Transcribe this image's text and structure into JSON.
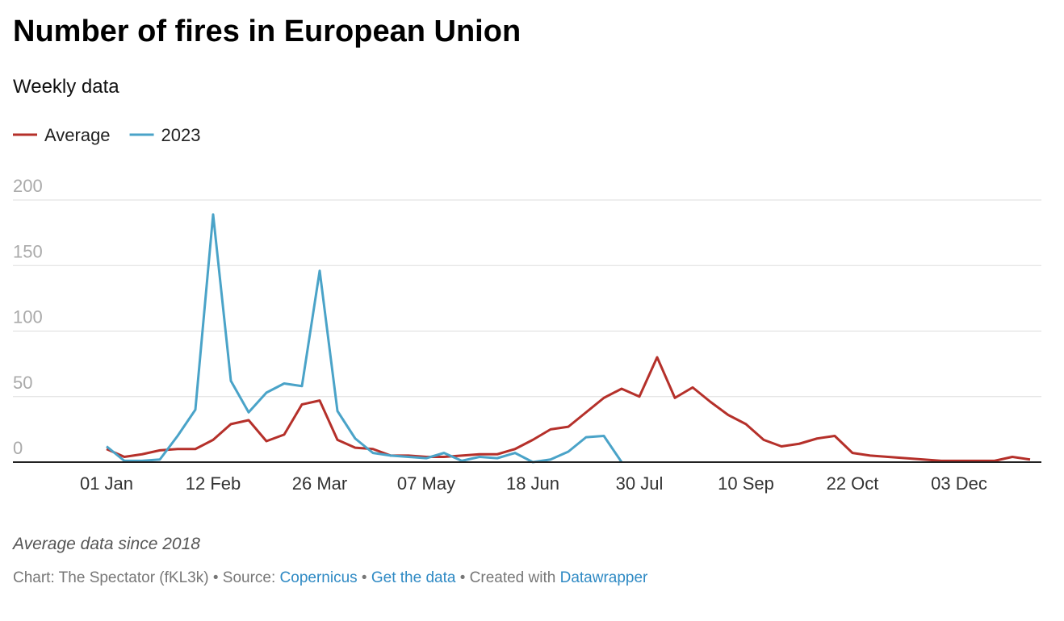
{
  "chart_data": {
    "type": "line",
    "title": "Number of fires in European Union",
    "subtitle": "Weekly data",
    "categories": [
      "01 Jan",
      null,
      null,
      null,
      null,
      null,
      "12 Feb",
      null,
      null,
      null,
      null,
      null,
      "26 Mar",
      null,
      null,
      null,
      null,
      null,
      "07 May",
      null,
      null,
      null,
      null,
      null,
      "18 Jun",
      null,
      null,
      null,
      null,
      null,
      "30 Jul",
      null,
      null,
      null,
      null,
      null,
      "10 Sep",
      null,
      null,
      null,
      null,
      null,
      "22 Oct",
      null,
      null,
      null,
      null,
      null,
      "03 Dec",
      null,
      null,
      null,
      null
    ],
    "series": [
      {
        "name": "Average",
        "color": "#b5302a",
        "values": [
          10,
          4,
          6,
          9,
          10,
          10,
          17,
          29,
          32,
          16,
          21,
          44,
          47,
          17,
          11,
          10,
          5,
          5,
          4,
          4,
          5,
          6,
          6,
          10,
          17,
          25,
          27,
          38,
          49,
          56,
          50,
          80,
          49,
          57,
          46,
          36,
          29,
          17,
          12,
          14,
          18,
          20,
          7,
          5,
          4,
          3,
          2,
          1,
          1,
          1,
          1,
          4,
          2
        ]
      },
      {
        "name": "2023",
        "color": "#4aa3c8",
        "values": [
          12,
          1,
          1,
          2,
          20,
          40,
          189,
          62,
          38,
          53,
          60,
          58,
          146,
          39,
          18,
          7,
          5,
          4,
          3,
          7,
          1,
          4,
          3,
          7,
          0,
          2,
          8,
          19,
          20,
          0,
          null,
          null,
          null,
          null,
          null,
          null,
          null,
          null,
          null,
          null,
          null,
          null,
          null,
          null,
          null,
          null,
          null,
          null,
          null,
          null,
          null,
          null,
          null
        ]
      }
    ],
    "ylim": [
      0,
      200
    ],
    "yticks": [
      0,
      50,
      100,
      150,
      200
    ],
    "grid": true,
    "note": "Average data since 2018",
    "credit": "Chart: The Spectator (fKL3k)",
    "separator": "•",
    "source_label": "Source:",
    "source": "Copernicus",
    "data_link": "Get the data",
    "created_label": "Created with",
    "created_link": "Datawrapper"
  }
}
